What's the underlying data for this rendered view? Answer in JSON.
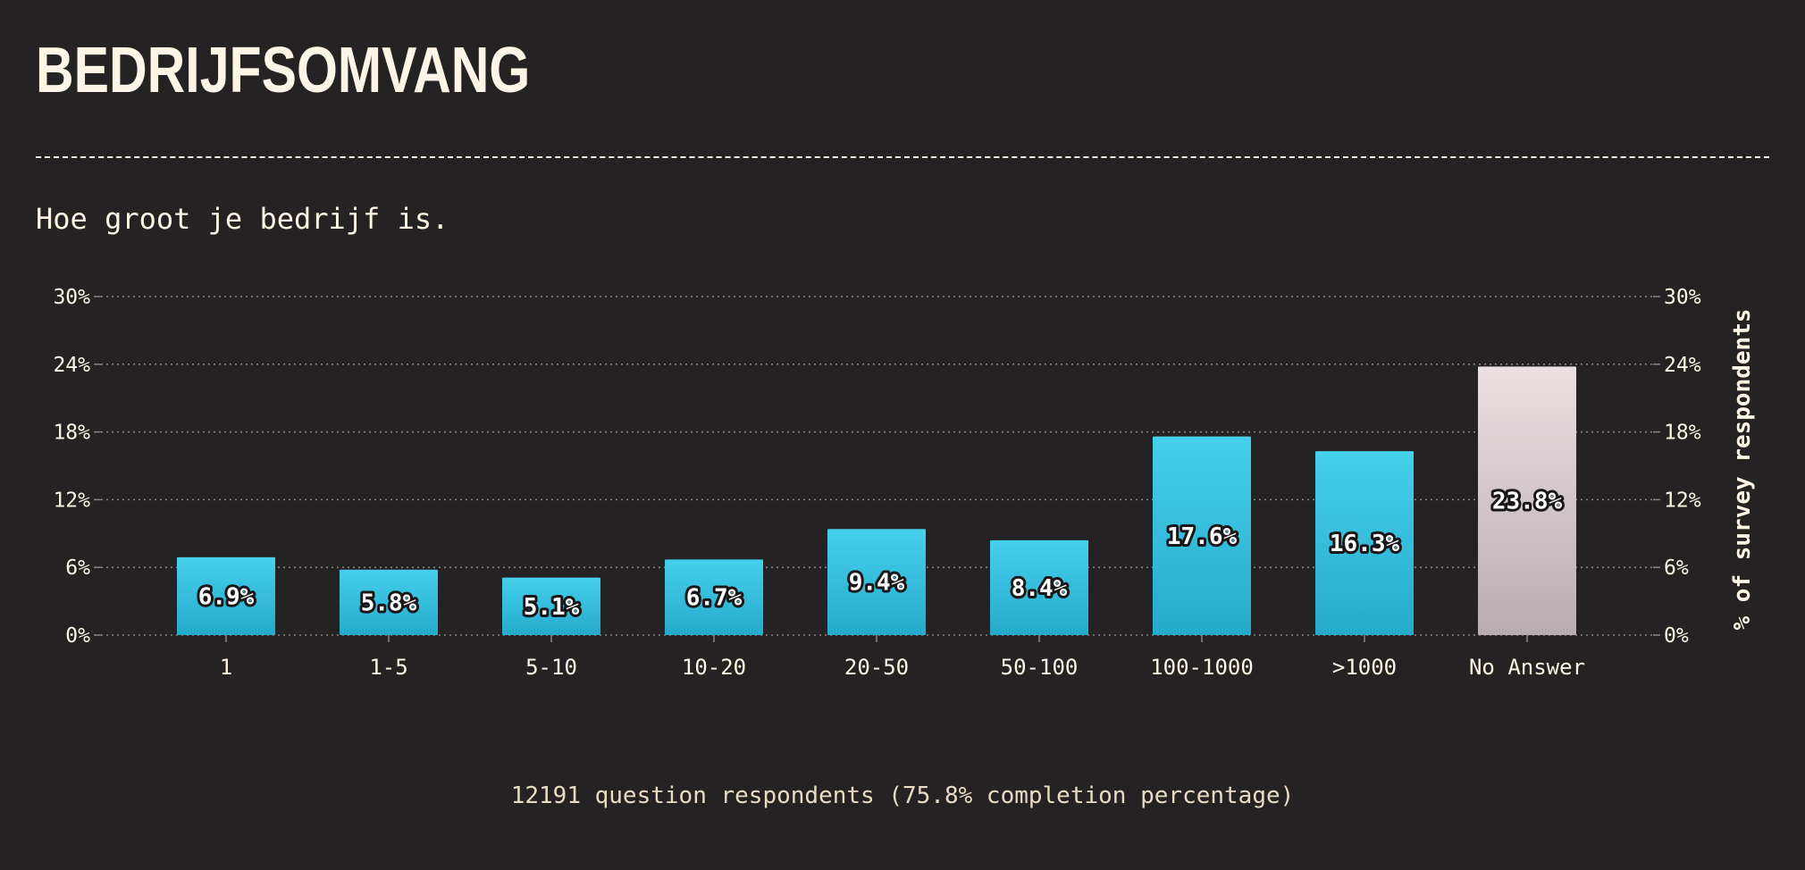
{
  "header": {
    "title": "BEDRIJFSOMVANG",
    "subtitle": "Hoe groot je bedrijf is."
  },
  "footer": {
    "text": "12191 question respondents (75.8% completion percentage)"
  },
  "colors": {
    "background": "#252223",
    "text": "#fdf6e6",
    "bar_top": "#45d0ec",
    "bar_bottom": "#26aacb",
    "na_top": "#eae0e2",
    "na_bottom": "#b8adb0"
  },
  "chart_data": {
    "type": "bar",
    "categories": [
      "1",
      "1-5",
      "5-10",
      "10-20",
      "20-50",
      "50-100",
      "100-1000",
      ">1000",
      "No Answer"
    ],
    "values": [
      6.9,
      5.8,
      5.1,
      6.7,
      9.4,
      8.4,
      17.6,
      16.3,
      23.8
    ],
    "labels": [
      "6.9%",
      "5.8%",
      "5.1%",
      "6.7%",
      "9.4%",
      "8.4%",
      "17.6%",
      "16.3%",
      "23.8%"
    ],
    "ylabel_right": "% of survey respondents",
    "ylim": [
      0,
      30
    ],
    "yticks": [
      "0%",
      "6%",
      "12%",
      "18%",
      "24%",
      "30%"
    ],
    "grid": true,
    "highlight_category": "No Answer"
  }
}
